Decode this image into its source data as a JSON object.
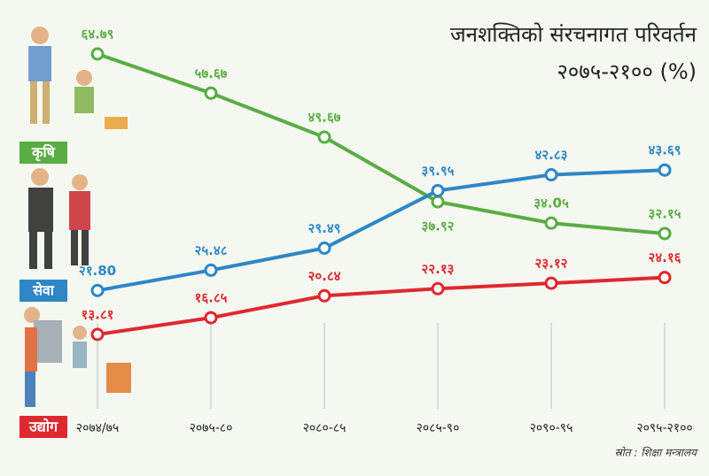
{
  "chart_data": {
    "type": "line",
    "title": "जनशक्तिको संरचनागत परिवर्तन",
    "subtitle": "२०७५-२१०० (%)",
    "source": "स्रोत : शिक्षा मन्त्रालय",
    "categories": [
      "२०७४/७५",
      "२०७५-८०",
      "२०८०-८५",
      "२०८५-९०",
      "२०९०-९५",
      "२०९५-२१००"
    ],
    "series": [
      {
        "name": "कृषि",
        "color": "#5aac44",
        "values": [
          64.79,
          57.67,
          49.67,
          37.92,
          34.05,
          32.15
        ],
        "value_labels": [
          "६४.७९",
          "५७.६७",
          "४९.६७",
          "३७.९२",
          "३४.0५",
          "३२.१५"
        ]
      },
      {
        "name": "सेवा",
        "color": "#2f86c5",
        "values": [
          21.8,
          25.48,
          29.49,
          39.95,
          42.83,
          43.69
        ],
        "value_labels": [
          "२१.80",
          "२५.४८",
          "२९.४९",
          "३९.९५",
          "४२.८३",
          "४३.६९"
        ]
      },
      {
        "name": "उद्योग",
        "color": "#e0282f",
        "values": [
          13.81,
          16.85,
          20.84,
          22.13,
          23.12,
          24.16
        ],
        "value_labels": [
          "१३.८१",
          "१६.८५",
          "२०.८४",
          "२२.१३",
          "२३.१२",
          "२४.१६"
        ]
      }
    ]
  }
}
